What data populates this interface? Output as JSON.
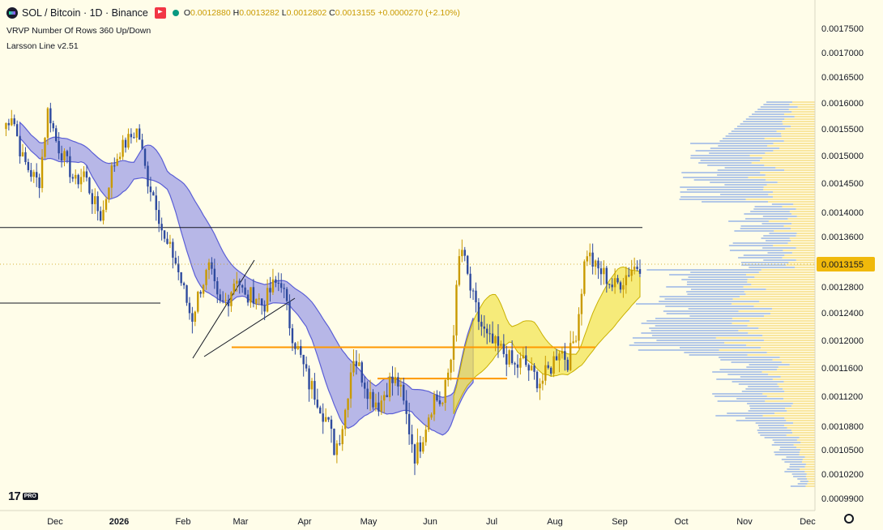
{
  "header": {
    "symbol_icon": "solana-icon",
    "title": "SOL / Bitcoin · 1D · Binance",
    "flag_icon": "flag-icon",
    "status_dot": "market-status-dot",
    "o_label": "O",
    "o_value": "0.0012880",
    "h_label": "H",
    "h_value": "0.0013282",
    "l_label": "L",
    "l_value": "0.0012802",
    "c_label": "C",
    "c_value": "0.0013155",
    "change": "+0.0000270 (+2.10%)"
  },
  "indicators": [
    "VRVP Number Of Rows 360 Up/Down",
    "Larsson Line v2.51"
  ],
  "logo_text": "17",
  "logo_badge": "PRO",
  "colors": {
    "background": "#fffde9",
    "candle_up": "#c99a00",
    "candle_down": "#2e4a9e",
    "band_bear": "#7b7de6",
    "band_bull": "#f2e24a",
    "orange_line": "#ff9800",
    "price_label": "#f0b90b"
  },
  "chart_data": {
    "type": "candlestick",
    "title": "SOL / Bitcoin · 1D · Binance",
    "y_range": [
      0.00098,
      0.00178
    ],
    "y_ticks": [
      "0.0017500",
      "0.0017000",
      "0.0016500",
      "0.0016000",
      "0.0015500",
      "0.0015000",
      "0.0014500",
      "0.0014000",
      "0.0013600",
      "0.0012800",
      "0.0012400",
      "0.0012000",
      "0.0011600",
      "0.0011200",
      "0.0010800",
      "0.0010500",
      "0.0010200",
      "0.0009900"
    ],
    "x_labels": [
      "Dec",
      "2026",
      "Feb",
      "Mar",
      "Apr",
      "May",
      "Jun",
      "Jul",
      "Aug",
      "Sep",
      "Oct",
      "Nov",
      "Dec"
    ],
    "last_price": "0.0013155",
    "series": [
      {
        "name": "price",
        "values": [
          0.00155,
          0.00158,
          0.0015,
          0.00147,
          0.00145,
          0.00159,
          0.00152,
          0.00149,
          0.00145,
          0.00147,
          0.00142,
          0.00139,
          0.00147,
          0.00151,
          0.00153,
          0.00155,
          0.00146,
          0.00142,
          0.00135,
          0.00133,
          0.00128,
          0.00123,
          0.00128,
          0.00131,
          0.00125,
          0.00126,
          0.0013,
          0.00126,
          0.00127,
          0.00125,
          0.00128,
          0.00129,
          0.00122,
          0.00118,
          0.00114,
          0.00112,
          0.00109,
          0.00105,
          0.00109,
          0.00118,
          0.00115,
          0.00112,
          0.00111,
          0.00114,
          0.00114,
          0.00109,
          0.00104,
          0.00108,
          0.00112,
          0.00111,
          0.00118,
          0.00135,
          0.00128,
          0.00123,
          0.0012,
          0.00119,
          0.00118,
          0.00116,
          0.00117,
          0.00115,
          0.00114,
          0.00116,
          0.00119,
          0.00117,
          0.00122,
          0.00134,
          0.00131,
          0.0013,
          0.00128,
          0.00129,
          0.00131,
          0.001315
        ]
      }
    ],
    "horizontal_lines": [
      {
        "color": "black",
        "value": 0.001375
      },
      {
        "color": "black",
        "value": 0.001255
      },
      {
        "color": "orange",
        "value": 0.00119
      },
      {
        "color": "orange",
        "value": 0.001145
      }
    ],
    "volume_profile": "VRVP Up/Down"
  }
}
